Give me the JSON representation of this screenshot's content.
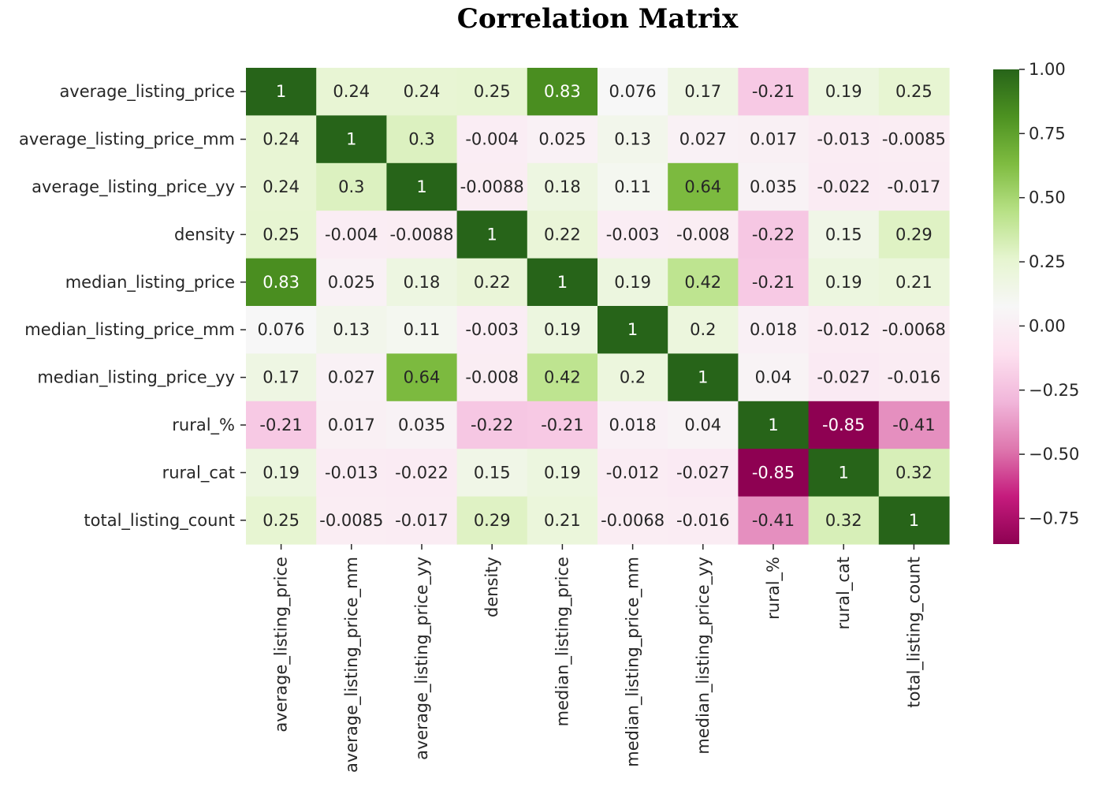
{
  "chart_data": {
    "type": "heatmap",
    "title": "Correlation Matrix",
    "xlabel": "",
    "ylabel": "",
    "row_labels": [
      "average_listing_price",
      "average_listing_price_mm",
      "average_listing_price_yy",
      "density",
      "median_listing_price",
      "median_listing_price_mm",
      "median_listing_price_yy",
      "rural_%",
      "rural_cat",
      "total_listing_count"
    ],
    "col_labels": [
      "average_listing_price",
      "average_listing_price_mm",
      "average_listing_price_yy",
      "density",
      "median_listing_price",
      "median_listing_price_mm",
      "median_listing_price_yy",
      "rural_%",
      "rural_cat",
      "total_listing_count"
    ],
    "values": [
      [
        1,
        0.24,
        0.24,
        0.25,
        0.83,
        0.076,
        0.17,
        -0.21,
        0.19,
        0.25
      ],
      [
        0.24,
        1,
        0.3,
        -0.004,
        0.025,
        0.13,
        0.027,
        0.017,
        -0.013,
        -0.0085
      ],
      [
        0.24,
        0.3,
        1,
        -0.0088,
        0.18,
        0.11,
        0.64,
        0.035,
        -0.022,
        -0.017
      ],
      [
        0.25,
        -0.004,
        -0.0088,
        1,
        0.22,
        -0.003,
        -0.008,
        -0.22,
        0.15,
        0.29
      ],
      [
        0.83,
        0.025,
        0.18,
        0.22,
        1,
        0.19,
        0.42,
        -0.21,
        0.19,
        0.21
      ],
      [
        0.076,
        0.13,
        0.11,
        -0.003,
        0.19,
        1,
        0.2,
        0.018,
        -0.012,
        -0.0068
      ],
      [
        0.17,
        0.027,
        0.64,
        -0.008,
        0.42,
        0.2,
        1,
        0.04,
        -0.027,
        -0.016
      ],
      [
        -0.21,
        0.017,
        0.035,
        -0.22,
        -0.21,
        0.018,
        0.04,
        1,
        -0.85,
        -0.41
      ],
      [
        0.19,
        -0.013,
        -0.022,
        0.15,
        0.19,
        -0.012,
        -0.027,
        -0.85,
        1,
        0.32
      ],
      [
        0.25,
        -0.0085,
        -0.017,
        0.29,
        0.21,
        -0.0068,
        -0.016,
        -0.41,
        0.32,
        1
      ]
    ],
    "annotations": [
      [
        "1",
        "0.24",
        "0.24",
        "0.25",
        "0.83",
        "0.076",
        "0.17",
        "-0.21",
        "0.19",
        "0.25"
      ],
      [
        "0.24",
        "1",
        "0.3",
        "-0.004",
        "0.025",
        "0.13",
        "0.027",
        "0.017",
        "-0.013",
        "-0.0085"
      ],
      [
        "0.24",
        "0.3",
        "1",
        "-0.0088",
        "0.18",
        "0.11",
        "0.64",
        "0.035",
        "-0.022",
        "-0.017"
      ],
      [
        "0.25",
        "-0.004",
        "-0.0088",
        "1",
        "0.22",
        "-0.003",
        "-0.008",
        "-0.22",
        "0.15",
        "0.29"
      ],
      [
        "0.83",
        "0.025",
        "0.18",
        "0.22",
        "1",
        "0.19",
        "0.42",
        "-0.21",
        "0.19",
        "0.21"
      ],
      [
        "0.076",
        "0.13",
        "0.11",
        "-0.003",
        "0.19",
        "1",
        "0.2",
        "0.018",
        "-0.012",
        "-0.0068"
      ],
      [
        "0.17",
        "0.027",
        "0.64",
        "-0.008",
        "0.42",
        "0.2",
        "1",
        "0.04",
        "-0.027",
        "-0.016"
      ],
      [
        "-0.21",
        "0.017",
        "0.035",
        "-0.22",
        "-0.21",
        "0.018",
        "0.04",
        "1",
        "-0.85",
        "-0.41"
      ],
      [
        "0.19",
        "-0.013",
        "-0.022",
        "0.15",
        "0.19",
        "-0.012",
        "-0.027",
        "-0.85",
        "1",
        "0.32"
      ],
      [
        "0.25",
        "-0.0085",
        "-0.017",
        "0.29",
        "0.21",
        "-0.0068",
        "-0.016",
        "-0.41",
        "0.32",
        "1"
      ]
    ],
    "colorbar": {
      "colormap": "PiYG",
      "vmin": -0.85,
      "vmax": 1.0,
      "ticks": [
        1.0,
        0.75,
        0.5,
        0.25,
        0.0,
        -0.25,
        -0.5,
        -0.75
      ],
      "tick_labels": [
        "1.00",
        "0.75",
        "0.50",
        "0.25",
        "0.00",
        "−0.25",
        "−0.50",
        "−0.75"
      ]
    },
    "colormap_stops": [
      "#8e0152",
      "#c51b7d",
      "#de77ae",
      "#f1b6da",
      "#fde0ef",
      "#f7f7f7",
      "#e6f5d0",
      "#b8e186",
      "#7fbc41",
      "#4d9221",
      "#276419"
    ],
    "grid": false
  }
}
